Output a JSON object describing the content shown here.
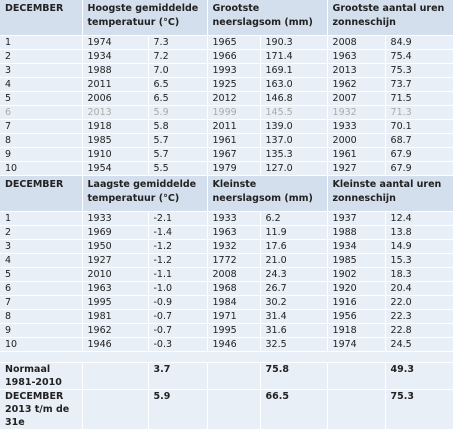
{
  "sections": [
    {
      "headers": [
        "DECEMBER",
        "Hoogste gemiddelde temperatuur (°C)",
        "Grootste neerslagsom (mm)",
        "Grootste aantal uren zonneschijn"
      ],
      "rows": [
        [
          "1",
          "1974",
          "7.3",
          "1965",
          "190.3",
          "2008",
          "84.9"
        ],
        [
          "2",
          "1934",
          "7.2",
          "1966",
          "171.4",
          "1963",
          "75.4"
        ],
        [
          "3",
          "1988",
          "7.0",
          "1993",
          "169.1",
          "2013",
          "75.3"
        ],
        [
          "4",
          "2011",
          "6.5",
          "1925",
          "163.0",
          "1962",
          "73.7"
        ],
        [
          "5",
          "2006",
          "6.5",
          "2012",
          "146.8",
          "2007",
          "71.5"
        ],
        [
          "6",
          "2013",
          "5.9",
          "1999",
          "145.5",
          "1932",
          "71.3"
        ],
        [
          "7",
          "1918",
          "5.8",
          "2011",
          "139.0",
          "1933",
          "70.1"
        ],
        [
          "8",
          "1985",
          "5.7",
          "1961",
          "137.0",
          "2000",
          "68.7"
        ],
        [
          "9",
          "1910",
          "5.7",
          "1967",
          "135.3",
          "1961",
          "67.9"
        ],
        [
          "10",
          "1954",
          "5.5",
          "1979",
          "127.0",
          "1927",
          "67.9"
        ]
      ]
    },
    {
      "headers": [
        "DECEMBER",
        "Laagste gemiddelde temperatuur (°C)",
        "Kleinste neerslagsom (mm)",
        "Kleinste aantal uren zonneschijn"
      ],
      "rows": [
        [
          "1",
          "1933",
          "-2.1",
          "1933",
          "6.2",
          "1937",
          "12.4"
        ],
        [
          "2",
          "1969",
          "-1.4",
          "1963",
          "11.9",
          "1988",
          "13.8"
        ],
        [
          "3",
          "1950",
          "-1.2",
          "1932",
          "17.6",
          "1934",
          "14.9"
        ],
        [
          "4",
          "1927",
          "-1.2",
          "1772",
          "21.0",
          "1985",
          "15.3"
        ],
        [
          "5",
          "2010",
          "-1.1",
          "2008",
          "24.3",
          "1902",
          "18.3"
        ],
        [
          "6",
          "1963",
          "-1.0",
          "1968",
          "26.7",
          "1920",
          "20.4"
        ],
        [
          "7",
          "1995",
          "-0.9",
          "1984",
          "30.2",
          "1916",
          "22.0"
        ],
        [
          "8",
          "1981",
          "-0.7",
          "1971",
          "31.4",
          "1956",
          "22.3"
        ],
        [
          "9",
          "1962",
          "-0.7",
          "1995",
          "31.6",
          "1918",
          "22.8"
        ],
        [
          "10",
          "1946",
          "-0.3",
          "1946",
          "32.5",
          "1974",
          "24.5"
        ]
      ]
    }
  ],
  "footer": [
    {
      "label": "Normaal 1981-2010",
      "values": [
        "3.7",
        "75.8",
        "49.3"
      ]
    },
    {
      "label": "DECEMBER 2013 t/m de 31e",
      "values": [
        "5.9",
        "66.5",
        "75.3"
      ]
    }
  ]
}
